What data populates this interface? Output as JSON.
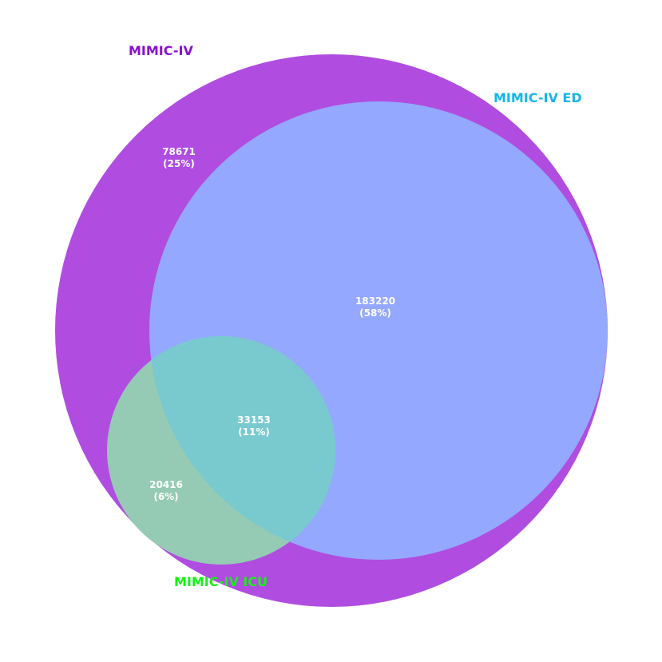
{
  "chart_data": {
    "type": "venn",
    "sets": [
      {
        "id": "mimic_iv",
        "name": "MIMIC-IV",
        "color": "#b04de0",
        "label_color": "#8a0fd0"
      },
      {
        "id": "mimic_iv_ed",
        "name": "MIMIC-IV ED",
        "color": "#94a8ff",
        "label_color": "#13b6ee"
      },
      {
        "id": "mimic_iv_icu",
        "name": "MIMIC-IV ICU",
        "color": "#95cab4",
        "label_color": "#16f016"
      }
    ],
    "regions": [
      {
        "id": "mimic_iv_only",
        "sets": [
          "MIMIC-IV"
        ],
        "count": 78671,
        "count_text": "78671",
        "percent_text": "(25%)"
      },
      {
        "id": "mimic_iv_and_ed",
        "sets": [
          "MIMIC-IV",
          "MIMIC-IV ED"
        ],
        "count": 183220,
        "count_text": "183220",
        "percent_text": "(58%)"
      },
      {
        "id": "mimic_iv_ed_icu",
        "sets": [
          "MIMIC-IV",
          "MIMIC-IV ED",
          "MIMIC-IV ICU"
        ],
        "count": 33153,
        "count_text": "33153",
        "percent_text": "(11%)"
      },
      {
        "id": "mimic_iv_and_icu",
        "sets": [
          "MIMIC-IV",
          "MIMIC-IV ICU"
        ],
        "count": 20416,
        "count_text": "20416",
        "percent_text": "(6%)"
      }
    ],
    "overlap_color": "#78cace"
  }
}
